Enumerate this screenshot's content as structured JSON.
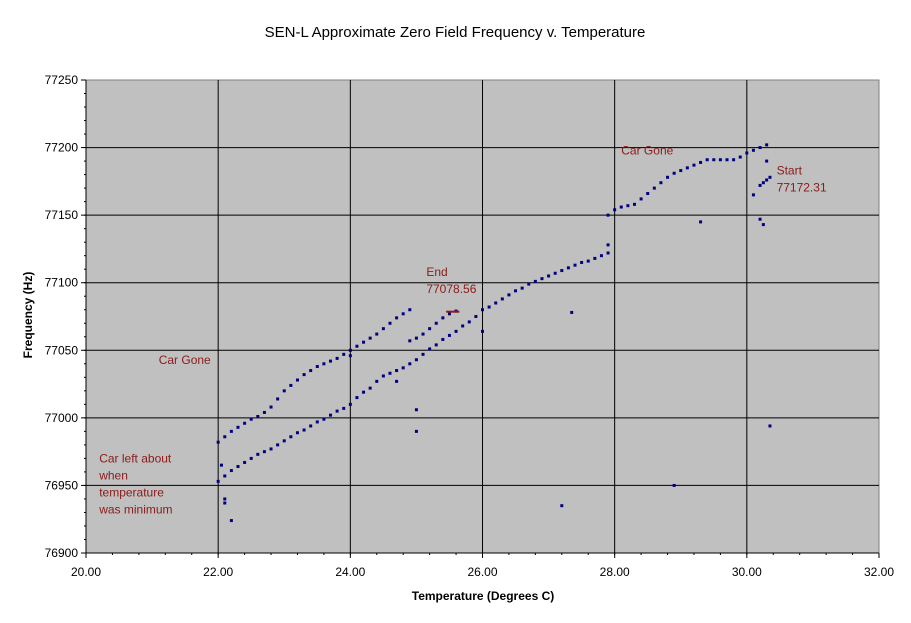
{
  "chart_data": {
    "type": "scatter",
    "title": "SEN-L Approximate Zero Field Frequency v. Temperature",
    "xlabel": "Temperature (Degrees C)",
    "ylabel": "Frequency (Hz)",
    "xlim": [
      20,
      32
    ],
    "ylim": [
      76900,
      77250
    ],
    "x_ticks": [
      "20.00",
      "22.00",
      "24.00",
      "26.00",
      "28.00",
      "30.00",
      "32.00"
    ],
    "y_ticks": [
      "76900",
      "76950",
      "77000",
      "77050",
      "77100",
      "77150",
      "77200",
      "77250"
    ],
    "grid": true,
    "plot_background": "#c0c0c0",
    "point_color": "#000080",
    "annotation_color": "#8b1a1a",
    "series": [
      {
        "points": [
          [
            22.0,
            76982
          ],
          [
            22.1,
            76986
          ],
          [
            22.2,
            76990
          ],
          [
            22.3,
            76993
          ],
          [
            22.4,
            76996
          ],
          [
            22.5,
            76999
          ],
          [
            22.6,
            77001
          ],
          [
            22.7,
            77004
          ],
          [
            22.8,
            77008
          ],
          [
            22.9,
            77014
          ],
          [
            23.0,
            77020
          ],
          [
            23.1,
            77024
          ],
          [
            23.2,
            77028
          ],
          [
            23.3,
            77032
          ],
          [
            23.4,
            77035
          ],
          [
            23.5,
            77038
          ],
          [
            23.6,
            77040
          ],
          [
            23.7,
            77042
          ],
          [
            23.8,
            77044
          ],
          [
            23.9,
            77047
          ],
          [
            24.0,
            77050
          ],
          [
            24.1,
            77053
          ],
          [
            24.2,
            77056
          ],
          [
            24.3,
            77059
          ],
          [
            24.4,
            77062
          ],
          [
            24.5,
            77066
          ],
          [
            24.6,
            77070
          ],
          [
            24.7,
            77074
          ],
          [
            24.8,
            77077
          ],
          [
            24.9,
            77080
          ],
          [
            22.0,
            76953
          ],
          [
            22.1,
            76957
          ],
          [
            22.2,
            76961
          ],
          [
            22.3,
            76964
          ],
          [
            22.4,
            76967
          ],
          [
            22.5,
            76970
          ],
          [
            22.6,
            76973
          ],
          [
            22.7,
            76975
          ],
          [
            22.8,
            76977
          ],
          [
            22.9,
            76980
          ],
          [
            23.0,
            76983
          ],
          [
            23.1,
            76986
          ],
          [
            23.2,
            76989
          ],
          [
            23.3,
            76991
          ],
          [
            23.4,
            76994
          ],
          [
            23.5,
            76997
          ],
          [
            23.6,
            76999
          ],
          [
            23.7,
            77002
          ],
          [
            23.8,
            77005
          ],
          [
            23.9,
            77007
          ],
          [
            24.0,
            77010
          ],
          [
            24.1,
            77015
          ],
          [
            24.2,
            77019
          ],
          [
            24.3,
            77022
          ],
          [
            24.4,
            77027
          ],
          [
            24.5,
            77031
          ],
          [
            24.6,
            77033
          ],
          [
            24.7,
            77035
          ],
          [
            24.8,
            77037
          ],
          [
            24.9,
            77040
          ],
          [
            25.0,
            77043
          ],
          [
            25.1,
            77047
          ],
          [
            25.2,
            77051
          ],
          [
            25.3,
            77054
          ],
          [
            25.4,
            77058
          ],
          [
            25.5,
            77061
          ],
          [
            25.6,
            77064
          ],
          [
            25.7,
            77068
          ],
          [
            25.8,
            77071
          ],
          [
            25.9,
            77075
          ],
          [
            26.0,
            77080
          ],
          [
            26.1,
            77082
          ],
          [
            26.2,
            77085
          ],
          [
            26.3,
            77088
          ],
          [
            26.4,
            77091
          ],
          [
            26.5,
            77094
          ],
          [
            26.6,
            77096
          ],
          [
            26.7,
            77099
          ],
          [
            26.8,
            77101
          ],
          [
            26.9,
            77103
          ],
          [
            27.0,
            77105
          ],
          [
            27.1,
            77107
          ],
          [
            27.2,
            77109
          ],
          [
            27.3,
            77111
          ],
          [
            27.4,
            77113
          ],
          [
            27.5,
            77115
          ],
          [
            27.6,
            77116
          ],
          [
            27.7,
            77118
          ],
          [
            27.8,
            77120
          ],
          [
            27.9,
            77122
          ],
          [
            24.9,
            77057
          ],
          [
            25.0,
            77059
          ],
          [
            25.1,
            77062
          ],
          [
            25.2,
            77066
          ],
          [
            25.3,
            77070
          ],
          [
            25.4,
            77074
          ],
          [
            25.5,
            77077
          ],
          [
            25.6,
            77079
          ],
          [
            27.9,
            77150
          ],
          [
            28.0,
            77154
          ],
          [
            28.1,
            77156
          ],
          [
            28.2,
            77157
          ],
          [
            28.3,
            77158
          ],
          [
            28.4,
            77162
          ],
          [
            28.5,
            77166
          ],
          [
            28.6,
            77170
          ],
          [
            28.7,
            77174
          ],
          [
            28.8,
            77178
          ],
          [
            28.9,
            77181
          ],
          [
            29.0,
            77183
          ],
          [
            29.1,
            77185
          ],
          [
            29.2,
            77187
          ],
          [
            29.3,
            77189
          ],
          [
            29.4,
            77191
          ],
          [
            29.5,
            77191
          ],
          [
            29.6,
            77191
          ],
          [
            29.7,
            77191
          ],
          [
            29.8,
            77191
          ],
          [
            29.9,
            77193
          ],
          [
            30.0,
            77196
          ],
          [
            30.1,
            77198
          ],
          [
            30.2,
            77200
          ],
          [
            30.3,
            77202
          ],
          [
            30.2,
            77172
          ],
          [
            30.25,
            77174
          ],
          [
            30.3,
            77176
          ],
          [
            30.35,
            77178
          ],
          [
            22.05,
            76965
          ],
          [
            22.1,
            76940
          ],
          [
            22.1,
            76937
          ],
          [
            22.2,
            76924
          ],
          [
            24.0,
            77046
          ],
          [
            24.7,
            77027
          ],
          [
            25.0,
            77006
          ],
          [
            25.0,
            76990
          ],
          [
            26.0,
            77064
          ],
          [
            27.2,
            76935
          ],
          [
            27.35,
            77078
          ],
          [
            27.9,
            77128
          ],
          [
            28.9,
            76950
          ],
          [
            29.3,
            77145
          ],
          [
            30.1,
            77165
          ],
          [
            30.2,
            77147
          ],
          [
            30.25,
            77143
          ],
          [
            30.3,
            77190
          ],
          [
            30.35,
            76994
          ]
        ]
      }
    ],
    "annotations": [
      {
        "lines": [
          "Car left about",
          "when",
          "temperature",
          "was minimum"
        ],
        "x": 20.2,
        "y": 76967
      },
      {
        "lines": [
          "Car Gone"
        ],
        "x": 21.1,
        "y": 77040
      },
      {
        "lines": [
          "End",
          "77078.56"
        ],
        "x": 25.15,
        "y": 77105
      },
      {
        "lines": [
          "Car Gone"
        ],
        "x": 28.1,
        "y": 77195
      },
      {
        "lines": [
          "Start",
          "77172.31"
        ],
        "x": 30.45,
        "y": 77180
      }
    ]
  }
}
